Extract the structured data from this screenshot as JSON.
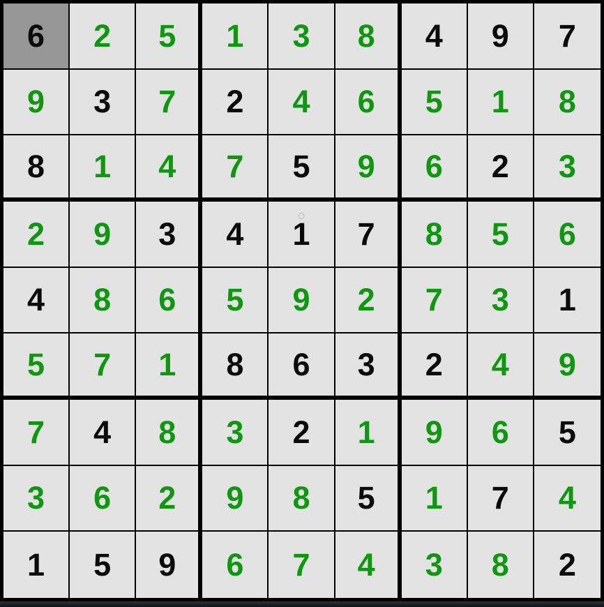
{
  "colors": {
    "cell_background": "#e3e3e3",
    "selected_cell_background": "#969696",
    "grid_line": "#000000",
    "given_digit": "#0a0a0a",
    "entered_digit": "#0f970f",
    "bottom_bar": "#1a1f21"
  },
  "board": {
    "selected_cell": {
      "row": 0,
      "col": 0
    },
    "pencil_mark_dot": {
      "row": 3,
      "col": 4
    },
    "rows": [
      [
        {
          "value": "6",
          "type": "given"
        },
        {
          "value": "2",
          "type": "entered"
        },
        {
          "value": "5",
          "type": "entered"
        },
        {
          "value": "1",
          "type": "entered"
        },
        {
          "value": "3",
          "type": "entered"
        },
        {
          "value": "8",
          "type": "entered"
        },
        {
          "value": "4",
          "type": "given"
        },
        {
          "value": "9",
          "type": "given"
        },
        {
          "value": "7",
          "type": "given"
        }
      ],
      [
        {
          "value": "9",
          "type": "entered"
        },
        {
          "value": "3",
          "type": "given"
        },
        {
          "value": "7",
          "type": "entered"
        },
        {
          "value": "2",
          "type": "given"
        },
        {
          "value": "4",
          "type": "entered"
        },
        {
          "value": "6",
          "type": "entered"
        },
        {
          "value": "5",
          "type": "entered"
        },
        {
          "value": "1",
          "type": "entered"
        },
        {
          "value": "8",
          "type": "entered"
        }
      ],
      [
        {
          "value": "8",
          "type": "given"
        },
        {
          "value": "1",
          "type": "entered"
        },
        {
          "value": "4",
          "type": "entered"
        },
        {
          "value": "7",
          "type": "entered"
        },
        {
          "value": "5",
          "type": "given"
        },
        {
          "value": "9",
          "type": "entered"
        },
        {
          "value": "6",
          "type": "entered"
        },
        {
          "value": "2",
          "type": "given"
        },
        {
          "value": "3",
          "type": "entered"
        }
      ],
      [
        {
          "value": "2",
          "type": "entered"
        },
        {
          "value": "9",
          "type": "entered"
        },
        {
          "value": "3",
          "type": "given"
        },
        {
          "value": "4",
          "type": "given"
        },
        {
          "value": "1",
          "type": "given"
        },
        {
          "value": "7",
          "type": "given"
        },
        {
          "value": "8",
          "type": "entered"
        },
        {
          "value": "5",
          "type": "entered"
        },
        {
          "value": "6",
          "type": "entered"
        }
      ],
      [
        {
          "value": "4",
          "type": "given"
        },
        {
          "value": "8",
          "type": "entered"
        },
        {
          "value": "6",
          "type": "entered"
        },
        {
          "value": "5",
          "type": "entered"
        },
        {
          "value": "9",
          "type": "entered"
        },
        {
          "value": "2",
          "type": "entered"
        },
        {
          "value": "7",
          "type": "entered"
        },
        {
          "value": "3",
          "type": "entered"
        },
        {
          "value": "1",
          "type": "given"
        }
      ],
      [
        {
          "value": "5",
          "type": "entered"
        },
        {
          "value": "7",
          "type": "entered"
        },
        {
          "value": "1",
          "type": "entered"
        },
        {
          "value": "8",
          "type": "given"
        },
        {
          "value": "6",
          "type": "given"
        },
        {
          "value": "3",
          "type": "given"
        },
        {
          "value": "2",
          "type": "given"
        },
        {
          "value": "4",
          "type": "entered"
        },
        {
          "value": "9",
          "type": "entered"
        }
      ],
      [
        {
          "value": "7",
          "type": "entered"
        },
        {
          "value": "4",
          "type": "given"
        },
        {
          "value": "8",
          "type": "entered"
        },
        {
          "value": "3",
          "type": "entered"
        },
        {
          "value": "2",
          "type": "given"
        },
        {
          "value": "1",
          "type": "entered"
        },
        {
          "value": "9",
          "type": "entered"
        },
        {
          "value": "6",
          "type": "entered"
        },
        {
          "value": "5",
          "type": "given"
        }
      ],
      [
        {
          "value": "3",
          "type": "entered"
        },
        {
          "value": "6",
          "type": "entered"
        },
        {
          "value": "2",
          "type": "entered"
        },
        {
          "value": "9",
          "type": "entered"
        },
        {
          "value": "8",
          "type": "entered"
        },
        {
          "value": "5",
          "type": "given"
        },
        {
          "value": "1",
          "type": "entered"
        },
        {
          "value": "7",
          "type": "given"
        },
        {
          "value": "4",
          "type": "entered"
        }
      ],
      [
        {
          "value": "1",
          "type": "given"
        },
        {
          "value": "5",
          "type": "given"
        },
        {
          "value": "9",
          "type": "given"
        },
        {
          "value": "6",
          "type": "entered"
        },
        {
          "value": "7",
          "type": "entered"
        },
        {
          "value": "4",
          "type": "entered"
        },
        {
          "value": "3",
          "type": "entered"
        },
        {
          "value": "8",
          "type": "entered"
        },
        {
          "value": "2",
          "type": "given"
        }
      ]
    ]
  }
}
